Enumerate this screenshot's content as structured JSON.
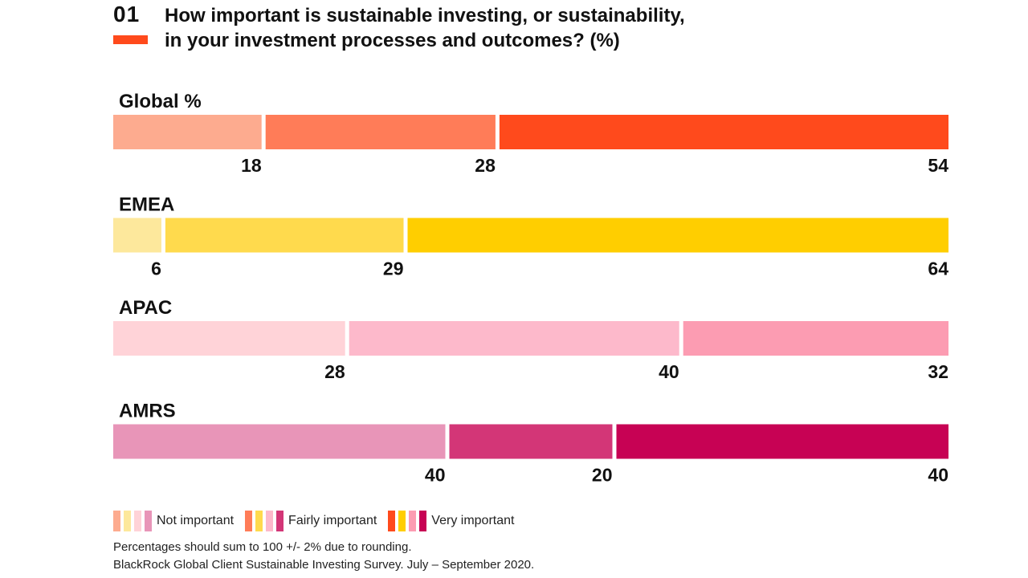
{
  "header": {
    "number": "01",
    "title_line1": "How important is sustainable investing, or sustainability,",
    "title_line2": "in your investment processes and outcomes? (%)",
    "accent_color": "#ff4a1c"
  },
  "chart_data": {
    "type": "bar",
    "orientation": "horizontal",
    "stacked": true,
    "xlim": [
      0,
      100
    ],
    "categories": [
      "Not important",
      "Fairly important",
      "Very important"
    ],
    "rows": [
      {
        "label": "Global %",
        "values": [
          18,
          28,
          54
        ],
        "colors": [
          "#fdab8f",
          "#ff7c58",
          "#ff4a1c"
        ]
      },
      {
        "label": "EMEA",
        "values": [
          6,
          29,
          64
        ],
        "colors": [
          "#fde89c",
          "#ffda4d",
          "#ffce00"
        ]
      },
      {
        "label": "APAC",
        "values": [
          28,
          40,
          32
        ],
        "colors": [
          "#ffd3d8",
          "#fdb9cb",
          "#fc9cb2"
        ]
      },
      {
        "label": "AMRS",
        "values": [
          40,
          20,
          40
        ],
        "colors": [
          "#e895b8",
          "#d33677",
          "#c70254"
        ]
      }
    ],
    "legend": [
      {
        "name": "Not important",
        "swatches": [
          "#fdab8f",
          "#fde89c",
          "#ffd3d8",
          "#e895b8"
        ]
      },
      {
        "name": "Fairly important",
        "swatches": [
          "#ff7c58",
          "#ffda4d",
          "#fdb9cb",
          "#d33677"
        ]
      },
      {
        "name": "Very important",
        "swatches": [
          "#ff4a1c",
          "#ffce00",
          "#fc9cb2",
          "#c70254"
        ]
      }
    ],
    "legend_position": "bottom-left",
    "grid": false
  },
  "footnotes": {
    "rounding": "Percentages should sum to 100 +/- 2% due to rounding.",
    "source": "BlackRock Global Client Sustainable Investing Survey. July – September 2020."
  }
}
